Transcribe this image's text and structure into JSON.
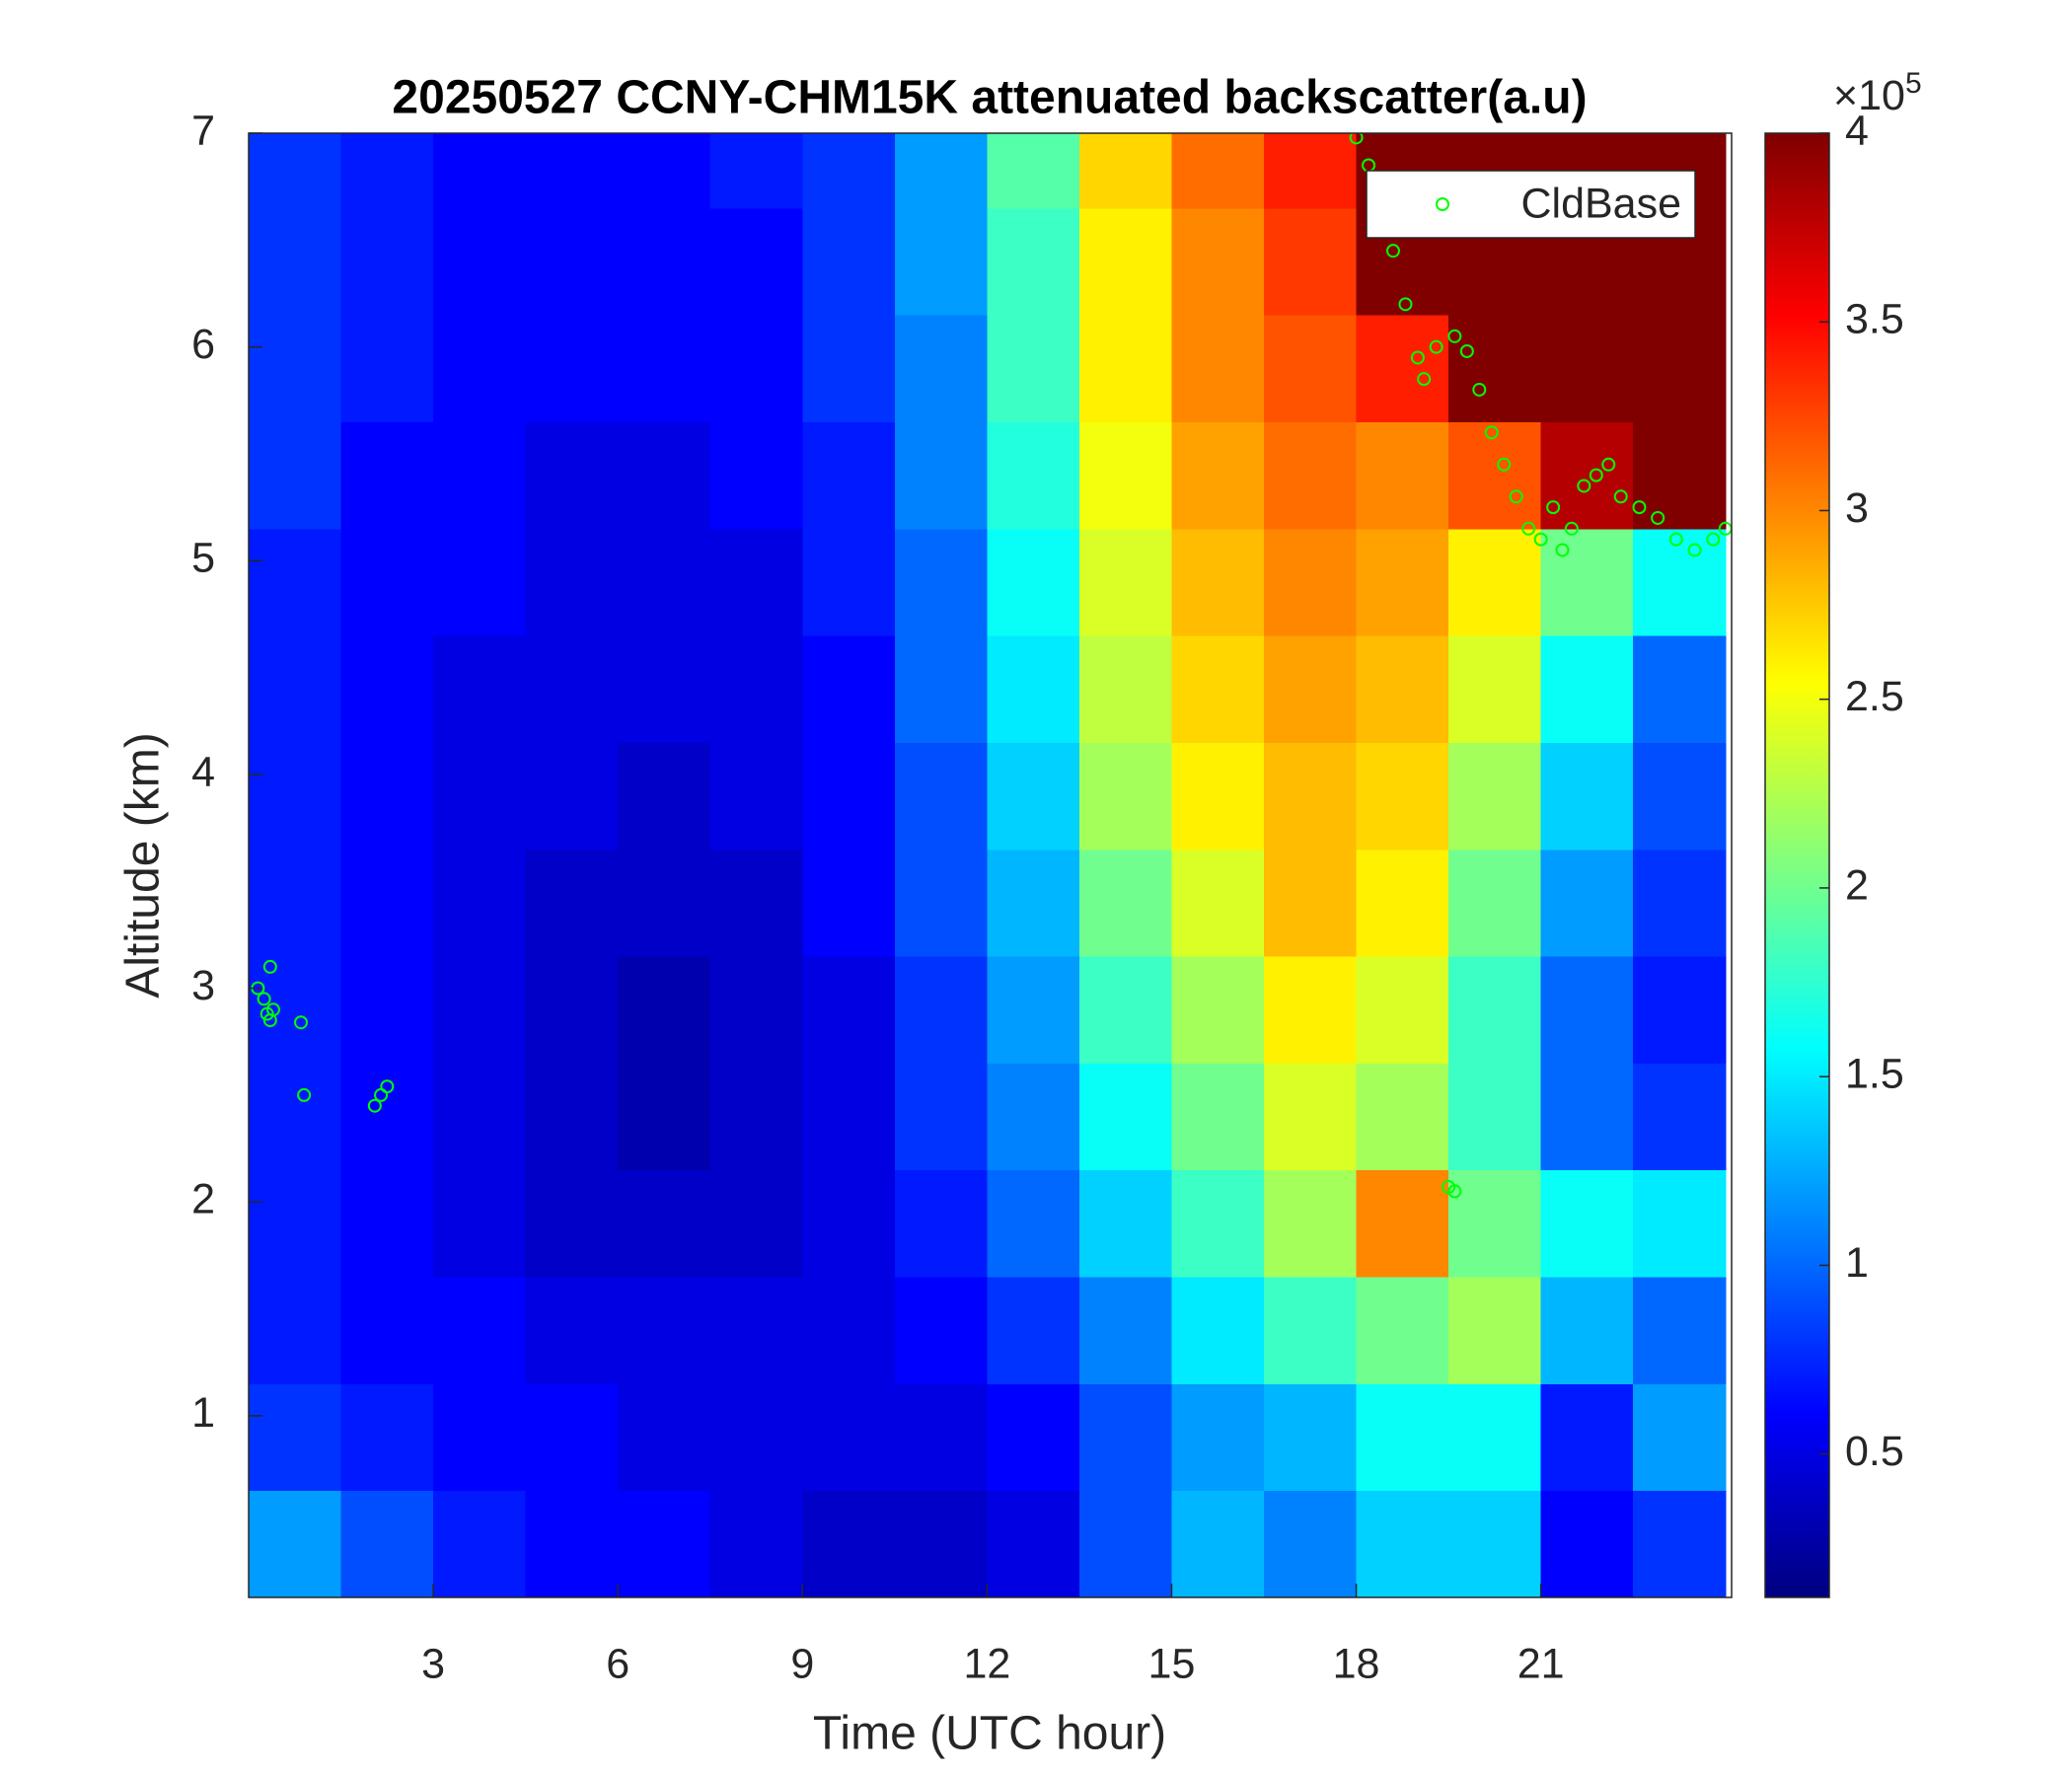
{
  "chart_data": {
    "type": "heatmap",
    "title": "20250527 CCNY-CHM15K attenuated backscatter(a.u)",
    "x_label": "Time (UTC hour)",
    "y_label": "Altitude (km)",
    "x": [
      0.75,
      2.25,
      3.75,
      5.25,
      6.75,
      8.25,
      9.75,
      11.25,
      12.75,
      14.25,
      15.75,
      17.25,
      18.75,
      20.25,
      21.75,
      23.25
    ],
    "y": [
      0.4,
      0.9,
      1.4,
      1.9,
      2.4,
      2.9,
      3.4,
      3.9,
      4.4,
      4.9,
      5.4,
      5.9,
      6.4,
      6.9
    ],
    "z": [
      [
        1.2,
        0.9,
        0.7,
        0.6,
        0.6,
        0.5,
        0.4,
        0.4,
        0.5,
        0.9,
        1.3,
        1.1,
        1.4,
        1.4,
        0.6,
        0.8
      ],
      [
        0.8,
        0.7,
        0.6,
        0.6,
        0.5,
        0.5,
        0.5,
        0.5,
        0.6,
        0.9,
        1.2,
        1.3,
        1.6,
        1.6,
        0.7,
        1.2
      ],
      [
        0.7,
        0.6,
        0.6,
        0.5,
        0.5,
        0.5,
        0.5,
        0.6,
        0.8,
        1.1,
        1.5,
        1.8,
        2.0,
        2.2,
        1.3,
        1.0
      ],
      [
        0.7,
        0.6,
        0.5,
        0.4,
        0.4,
        0.4,
        0.5,
        0.7,
        1.0,
        1.4,
        1.8,
        2.2,
        3.0,
        2.0,
        1.6,
        1.5
      ],
      [
        0.7,
        0.6,
        0.5,
        0.4,
        0.3,
        0.4,
        0.5,
        0.8,
        1.1,
        1.6,
        2.0,
        2.4,
        2.2,
        1.8,
        1.0,
        0.8
      ],
      [
        0.7,
        0.6,
        0.5,
        0.4,
        0.3,
        0.4,
        0.5,
        0.8,
        1.2,
        1.8,
        2.2,
        2.6,
        2.4,
        1.8,
        1.0,
        0.7
      ],
      [
        0.7,
        0.6,
        0.5,
        0.4,
        0.4,
        0.4,
        0.6,
        0.9,
        1.3,
        2.0,
        2.4,
        2.8,
        2.6,
        2.0,
        1.2,
        0.8
      ],
      [
        0.7,
        0.6,
        0.5,
        0.5,
        0.4,
        0.5,
        0.6,
        0.9,
        1.4,
        2.2,
        2.6,
        2.8,
        2.7,
        2.2,
        1.4,
        0.9
      ],
      [
        0.7,
        0.6,
        0.5,
        0.5,
        0.5,
        0.5,
        0.6,
        1.0,
        1.5,
        2.3,
        2.7,
        2.9,
        2.8,
        2.4,
        1.6,
        1.0
      ],
      [
        0.7,
        0.6,
        0.6,
        0.5,
        0.5,
        0.5,
        0.7,
        1.0,
        1.6,
        2.4,
        2.8,
        3.0,
        2.9,
        2.6,
        2.0,
        1.6
      ],
      [
        0.8,
        0.6,
        0.6,
        0.5,
        0.5,
        0.6,
        0.7,
        1.1,
        1.7,
        2.5,
        2.9,
        3.1,
        3.0,
        3.2,
        3.8,
        4
      ],
      [
        0.8,
        0.7,
        0.6,
        0.6,
        0.6,
        0.6,
        0.8,
        1.1,
        1.8,
        2.6,
        3.0,
        3.2,
        3.4,
        4,
        4,
        4
      ],
      [
        0.8,
        0.7,
        0.6,
        0.6,
        0.6,
        0.6,
        0.8,
        1.2,
        1.8,
        2.6,
        3.0,
        3.3,
        4,
        4,
        4,
        4
      ],
      [
        0.8,
        0.7,
        0.6,
        0.6,
        0.6,
        0.7,
        0.8,
        1.2,
        1.9,
        2.7,
        3.1,
        3.4,
        4,
        4,
        4,
        4
      ]
    ],
    "colormap": "jet",
    "clim": [
      0.12,
      4
    ],
    "cticks": [
      0.5,
      1,
      1.5,
      2,
      2.5,
      3,
      3.5,
      4
    ],
    "colorbar_label": {
      "base": "×10",
      "exponent": "5"
    },
    "xlim": [
      0,
      24.1
    ],
    "ylim": [
      0.15,
      7
    ],
    "xticks": [
      3,
      6,
      9,
      12,
      15,
      18,
      21
    ],
    "yticks": [
      1,
      2,
      3,
      4,
      5,
      6,
      7
    ],
    "legend": "upper right",
    "overlay": {
      "type": "scatter",
      "name": "CldBase",
      "color": "#00ff00",
      "x": [
        0.15,
        0.25,
        0.3,
        0.35,
        0.4,
        0.35,
        0.85,
        0.9,
        2.05,
        2.15,
        2.25,
        18,
        18.2,
        18.4,
        18.6,
        18.8,
        19,
        19.1,
        19.3,
        19.6,
        19.8,
        20,
        20.2,
        20.4,
        20.6,
        20.8,
        21,
        21.2,
        21.35,
        21.5,
        21.7,
        21.9,
        22.1,
        22.3,
        22.6,
        22.9,
        23.2,
        23.5,
        23.8,
        24,
        19.5,
        19.6
      ],
      "y": [
        3.0,
        2.95,
        2.88,
        2.85,
        2.9,
        3.1,
        2.84,
        2.5,
        2.45,
        2.5,
        2.54,
        6.98,
        6.85,
        6.6,
        6.45,
        6.2,
        5.95,
        5.85,
        6.0,
        6.05,
        5.98,
        5.8,
        5.6,
        5.45,
        5.3,
        5.15,
        5.1,
        5.25,
        5.05,
        5.15,
        5.35,
        5.4,
        5.45,
        5.3,
        5.25,
        5.2,
        5.1,
        5.05,
        5.1,
        5.15,
        2.07,
        2.05
      ]
    }
  }
}
